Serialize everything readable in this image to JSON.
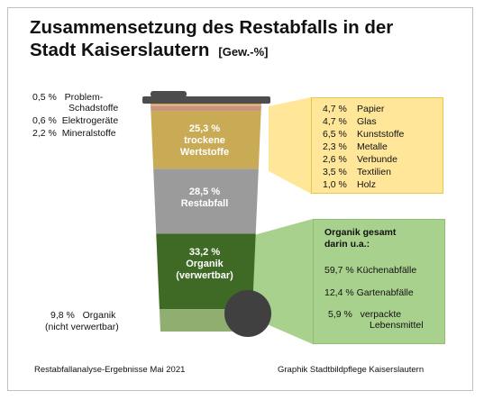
{
  "title": {
    "line1": "Zusammensetzung des Restabfalls in der",
    "line2": "Stadt Kaiserslautern",
    "unit": "[Gew.-%]"
  },
  "chart_data": {
    "type": "bar",
    "title": "Zusammensetzung des Restabfalls in der Stadt Kaiserslautern",
    "unit": "[Gew.-%]",
    "categories": [
      "Problem-Schadstoffe",
      "Elektrogeräte",
      "Mineralstoffe",
      "trockene Wertstoffe",
      "Restabfall",
      "Organik (verwertbar)",
      "Organik (nicht verwertbar)"
    ],
    "values": [
      0.5,
      0.6,
      2.2,
      25.3,
      28.5,
      33.2,
      9.8
    ],
    "colors": [
      "#d4a64f",
      "#e3a08a",
      "#c8957a",
      "#c9ab56",
      "#9b9b9b",
      "#3f6a25",
      "#8fae70"
    ],
    "side_labels": [
      {
        "value": "0,5 %",
        "label": "Problem-",
        "label2": "Schadstoffe"
      },
      {
        "value": "0,6 %",
        "label": "Elektrogeräte"
      },
      {
        "value": "2,2 %",
        "label": "Mineralstoffe"
      },
      {
        "value": "9,8 %",
        "label": "Organik",
        "label2": "(nicht verwertbar)"
      }
    ],
    "segment_labels": [
      {
        "value": "25,3 %",
        "line1": "trockene",
        "line2": "Wertstoffe"
      },
      {
        "value": "28,5 %",
        "line1": "Restabfall"
      },
      {
        "value": "33,2 %",
        "line1": "Organik",
        "line2": "(verwertbar)"
      }
    ],
    "wertstoffe_breakdown": [
      {
        "value": "4,7 %",
        "label": "Papier"
      },
      {
        "value": "4,7 %",
        "label": "Glas"
      },
      {
        "value": "6,5 %",
        "label": "Kunststoffe"
      },
      {
        "value": "2,3 %",
        "label": "Metalle"
      },
      {
        "value": "2,6 %",
        "label": "Verbunde"
      },
      {
        "value": "3,5 %",
        "label": "Textilien"
      },
      {
        "value": "1,0 %",
        "label": "Holz"
      }
    ],
    "organik_breakdown": {
      "heading1": "Organik gesamt",
      "heading2": "darin u.a.:",
      "items": [
        {
          "value": "59,7 %",
          "label": "Küchenabfälle"
        },
        {
          "value": "12,4 %",
          "label": "Gartenabfälle"
        },
        {
          "value": "5,9 %",
          "label": "verpackte",
          "label2": "Lebensmittel"
        }
      ]
    }
  },
  "footer": {
    "left": "Restabfallanalyse-Ergebnisse Mai 2021",
    "right": "Graphik Stadtbildpflege Kaiserslautern"
  },
  "colors": {
    "callout_yellow": "#ffe699",
    "callout_green": "#a9d18e",
    "bin_lid": "#4d4d4d",
    "bin_wheel": "#404040"
  }
}
